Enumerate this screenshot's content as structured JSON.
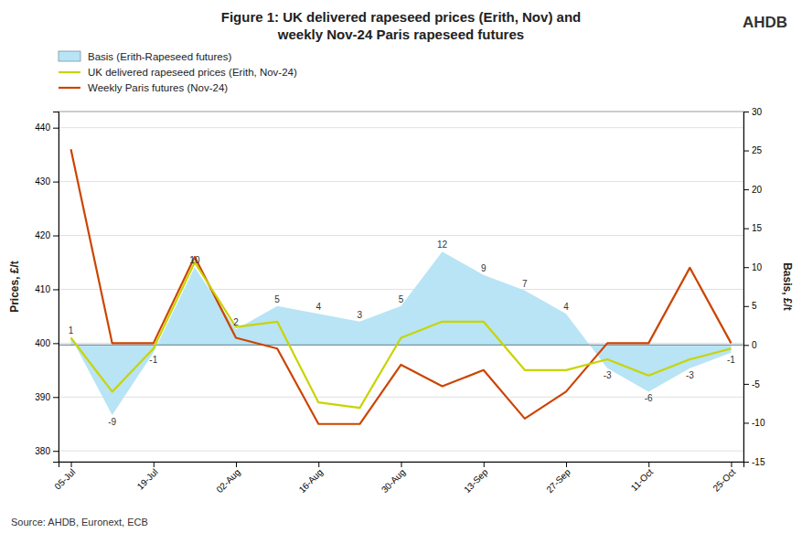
{
  "chart_data": {
    "type": "line",
    "title": "Figure 1: UK delivered rapeseed prices (Erith, Nov) and\nweekly Nov-24 Paris rapeseed futures",
    "ylabel": "Prices, £/t",
    "y2label": "Basis, £/t",
    "annotations": [
      "Source: AHDB, Euronext, ECB",
      "AHDB"
    ],
    "categories": [
      "05-Jul",
      null,
      "19-Jul",
      null,
      "02-Aug",
      null,
      "16-Aug",
      null,
      "30-Aug",
      null,
      "13-Sep",
      null,
      "27-Sep",
      null,
      "11-Oct",
      null,
      "25-Oct"
    ],
    "series": [
      {
        "name": "Basis (Erith-Rapeseed futures)",
        "type": "area",
        "axis": "y2",
        "color": "#b8e4f5",
        "data_labels": true,
        "values": [
          1,
          -9,
          -1,
          10,
          2,
          5,
          4,
          3,
          5,
          12,
          9,
          7,
          4,
          -3,
          -6,
          -3,
          -1
        ]
      },
      {
        "name": "UK delivered rapeseed prices (Erith, Nov-24)",
        "type": "line",
        "color": "#c8d400",
        "values": [
          401,
          391,
          399,
          415,
          403,
          404,
          389,
          388,
          401,
          404,
          404,
          395,
          395,
          397,
          394,
          397,
          399
        ]
      },
      {
        "name": "Weekly Paris futures (Nov-24)",
        "type": "line",
        "color": "#cc4400",
        "values": [
          436,
          400,
          400,
          416,
          401,
          399,
          385,
          385,
          396,
          392,
          395,
          386,
          391,
          400,
          400,
          414,
          400
        ]
      }
    ],
    "ylim": [
      378,
      443
    ],
    "yticks": [
      380,
      390,
      400,
      410,
      420,
      430,
      440
    ],
    "y2lim": [
      -15,
      30
    ],
    "y2ticks": [
      -15,
      -10,
      -5,
      0,
      5,
      10,
      15,
      20,
      25,
      30
    ],
    "grid": true,
    "legend": "top"
  }
}
